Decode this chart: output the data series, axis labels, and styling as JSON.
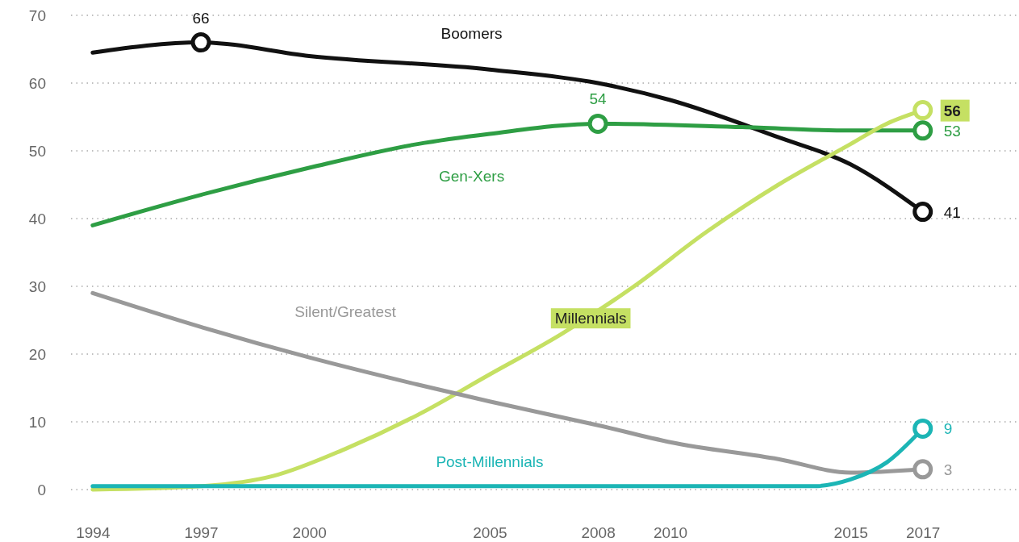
{
  "chart_data": {
    "type": "line",
    "ylim": [
      0,
      70
    ],
    "yticks": [
      0,
      10,
      20,
      30,
      40,
      50,
      60,
      70
    ],
    "xlim": [
      1993.4,
      2019.6
    ],
    "xticks": [
      1994,
      1997,
      2000,
      2005,
      2008,
      2010,
      2015,
      2017
    ],
    "grid": "y",
    "legend": false,
    "marker": "none",
    "line_style": "solid",
    "series": [
      {
        "name": "Boomers",
        "color": "#111111",
        "x": [
          1994,
          1997,
          2000,
          2005,
          2008,
          2010,
          2013,
          2015,
          2017
        ],
        "values": [
          64.5,
          66,
          64,
          62,
          60,
          57.5,
          52,
          48,
          41
        ],
        "value_labels": [
          null,
          "66",
          null,
          null,
          null,
          null,
          null,
          null,
          "41"
        ]
      },
      {
        "name": "Gen-Xers",
        "color": "#2e9e44",
        "x": [
          1994,
          1997,
          2000,
          2003,
          2005,
          2008,
          2012,
          2015,
          2017
        ],
        "values": [
          39,
          43.5,
          47.5,
          51,
          52.5,
          54,
          53.5,
          53,
          53
        ],
        "value_labels": [
          null,
          null,
          null,
          null,
          null,
          "54",
          null,
          null,
          "53"
        ]
      },
      {
        "name": "Millennials",
        "color": "#c5e063",
        "x": [
          1994,
          1997,
          1999,
          2001,
          2003,
          2005,
          2007,
          2009,
          2011,
          2013,
          2015,
          2016,
          2017
        ],
        "values": [
          0,
          0.5,
          2,
          6,
          11,
          17,
          23,
          30,
          38,
          45,
          51,
          54,
          56
        ],
        "value_labels": [
          null,
          null,
          null,
          null,
          null,
          null,
          null,
          null,
          null,
          null,
          null,
          null,
          "56"
        ]
      },
      {
        "name": "Silent/Greatest",
        "color": "#999999",
        "x": [
          1994,
          1997,
          2000,
          2003,
          2005,
          2008,
          2010,
          2013,
          2015,
          2017
        ],
        "values": [
          29,
          24,
          19.5,
          15.5,
          13,
          9.5,
          7,
          4.5,
          2.5,
          3
        ],
        "value_labels": [
          null,
          null,
          null,
          null,
          null,
          null,
          null,
          null,
          null,
          "3"
        ]
      },
      {
        "name": "Post-Millennials",
        "color": "#1cb5b5",
        "x": [
          1994,
          2000,
          2005,
          2010,
          2014,
          2015,
          2016,
          2017
        ],
        "values": [
          0.5,
          0.5,
          0.5,
          0.5,
          0.5,
          1.5,
          4,
          9
        ],
        "value_labels": [
          null,
          null,
          null,
          null,
          null,
          null,
          null,
          "9"
        ]
      }
    ]
  }
}
